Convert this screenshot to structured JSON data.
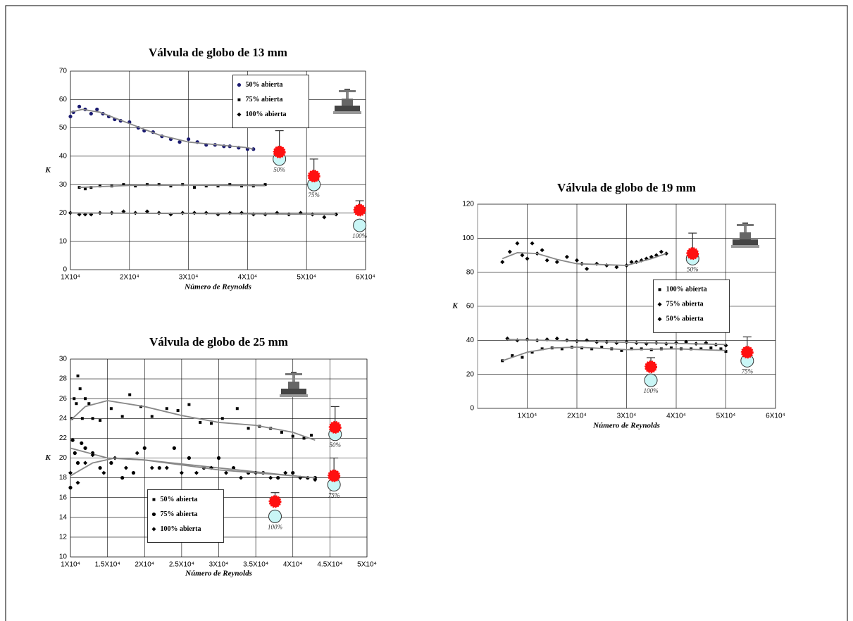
{
  "chart_data": [
    {
      "type": "scatter",
      "title": "Válvula de globo de 13 mm",
      "x_label": "Número de Reynolds",
      "y_label": "K",
      "xlim": [
        10000,
        60000
      ],
      "ylim": [
        0,
        70
      ],
      "xticks": [
        {
          "value": 10000,
          "label": "1X10⁴"
        },
        {
          "value": 20000,
          "label": "2X10⁴"
        },
        {
          "value": 30000,
          "label": "3X10⁴"
        },
        {
          "value": 40000,
          "label": "4X10⁴"
        },
        {
          "value": 50000,
          "label": "5X10⁴"
        },
        {
          "value": 60000,
          "label": "6X10⁴"
        }
      ],
      "yticks": [
        0,
        10,
        20,
        30,
        40,
        50,
        60,
        70
      ],
      "grid": true,
      "legend": "upper center",
      "series": [
        {
          "name": "50% abierta",
          "color": "#1a1a70",
          "marker": "circle",
          "x": [
            10000,
            10500,
            11500,
            12500,
            13500,
            14500,
            15500,
            16500,
            17500,
            18500,
            20000,
            21500,
            22500,
            24000,
            25500,
            27000,
            28500,
            30000,
            31500,
            33000,
            34500,
            36000,
            37000,
            38500,
            40000,
            41000
          ],
          "values": [
            54,
            55.5,
            57.5,
            56.5,
            55,
            56.5,
            55,
            54,
            53,
            52.5,
            52,
            50,
            49,
            48.5,
            47,
            46,
            45,
            46,
            45,
            44,
            44,
            43.5,
            43.5,
            43,
            42.5,
            42.5
          ],
          "trend_x": [
            10000,
            12000,
            15000,
            20000,
            25000,
            30000,
            35000,
            40000,
            41000
          ],
          "trend_y": [
            55.5,
            56.5,
            55.5,
            51.5,
            47.5,
            45,
            44,
            43,
            42.5
          ]
        },
        {
          "name": "75% abierta",
          "color": "#000000",
          "marker": "square",
          "x": [
            11500,
            12500,
            13500,
            15000,
            17000,
            19000,
            21000,
            23000,
            25000,
            27000,
            29000,
            31000,
            33000,
            35000,
            37000,
            39000,
            41000,
            43000
          ],
          "values": [
            29,
            28.5,
            29,
            29.5,
            29.5,
            30,
            29.5,
            30,
            30,
            29.5,
            30,
            29,
            29.5,
            29.5,
            30,
            29.5,
            29.5,
            30
          ],
          "trend_x": [
            11500,
            20000,
            30000,
            43000
          ],
          "trend_y": [
            29,
            29.7,
            29.8,
            29.6
          ]
        },
        {
          "name": "100% abierta",
          "color": "#000000",
          "marker": "diamond",
          "x": [
            10000,
            11500,
            12500,
            13500,
            15000,
            17000,
            19000,
            21000,
            23000,
            25000,
            27000,
            29000,
            31000,
            33000,
            35000,
            37000,
            39000,
            41000,
            43000,
            45000,
            47000,
            49000,
            51000,
            53000,
            55000
          ],
          "values": [
            20,
            19.5,
            19.5,
            19.5,
            20,
            20,
            20.5,
            20,
            20.5,
            20,
            19.5,
            20,
            20,
            20,
            19.5,
            20,
            20,
            19.5,
            19.5,
            20,
            19.5,
            20,
            19.5,
            18.5,
            19.5
          ],
          "trend_x": [
            10000,
            30000,
            55000
          ],
          "trend_y": [
            20,
            19.8,
            19.5
          ]
        }
      ],
      "annotations": [
        {
          "x": 45400,
          "y_measured": 41.5,
          "error": 7.5,
          "y_predicted": 39,
          "label": "50%"
        },
        {
          "x": 51250,
          "y_measured": 33,
          "error": 6,
          "y_predicted": 30,
          "label": "75%"
        },
        {
          "x": 59000,
          "y_measured": 21,
          "error": 3.3,
          "y_predicted": 15.6,
          "label": "100%"
        }
      ]
    },
    {
      "type": "scatter",
      "title": "Válvula de globo de 19 mm",
      "x_label": "Número de Reynolds",
      "y_label": "K",
      "xlim": [
        0,
        60000
      ],
      "ylim": [
        0,
        120
      ],
      "xticks": [
        {
          "value": 10000,
          "label": "1X10⁴"
        },
        {
          "value": 20000,
          "label": "2X10⁴"
        },
        {
          "value": 30000,
          "label": "3X10⁴"
        },
        {
          "value": 40000,
          "label": "4X10⁴"
        },
        {
          "value": 50000,
          "label": "5X10⁴"
        },
        {
          "value": 60000,
          "label": "6X10⁴"
        }
      ],
      "yticks": [
        0,
        20,
        40,
        60,
        80,
        100,
        120
      ],
      "grid": true,
      "legend": "center right",
      "series": [
        {
          "name": "100% abierta",
          "color": "#000000",
          "marker": "square",
          "x": [
            5000,
            7000,
            9000,
            11000,
            13000,
            15000,
            17000,
            19000,
            21000,
            23000,
            25000,
            27000,
            29000,
            31000,
            33000,
            35000,
            37000,
            39000,
            41000,
            43000,
            45000,
            47000,
            49000,
            50000
          ],
          "values": [
            28,
            31,
            30,
            33,
            35,
            35.5,
            35,
            36,
            35.5,
            35,
            36,
            35,
            34,
            35,
            35,
            34.5,
            35,
            35.5,
            35,
            35,
            35,
            35.5,
            35,
            33.5
          ],
          "trend_x": [
            5000,
            10000,
            15000,
            20000,
            30000,
            40000,
            50000
          ],
          "trend_y": [
            28,
            33,
            35.5,
            36,
            34.5,
            35,
            34
          ]
        },
        {
          "name": "75% abierta",
          "color": "#000000",
          "marker": "diamond",
          "x": [
            6000,
            8000,
            10000,
            12000,
            14000,
            16000,
            18000,
            20000,
            22000,
            24000,
            26000,
            28000,
            30000,
            32000,
            34000,
            36000,
            38000,
            40000,
            42000,
            44000,
            46000,
            48000,
            50000
          ],
          "values": [
            41,
            40,
            40.5,
            40,
            40.5,
            41,
            40,
            39.5,
            40,
            39,
            39,
            38.5,
            39,
            38.5,
            38,
            38.5,
            38,
            38.5,
            39,
            38,
            38.5,
            37.5,
            37
          ],
          "trend_x": [
            6000,
            20000,
            35000,
            50000
          ],
          "trend_y": [
            40.5,
            39.5,
            38.5,
            37.5
          ]
        },
        {
          "name": "50% abierta",
          "color": "#000000",
          "marker": "diamond",
          "x": [
            5000,
            6500,
            8000,
            9000,
            10000,
            11000,
            12000,
            13000,
            14000,
            16000,
            18000,
            20000,
            21000,
            22000,
            24000,
            26000,
            28000,
            30000,
            31000,
            32000,
            33000,
            34000,
            35000,
            36000,
            37000,
            38000
          ],
          "values": [
            86,
            92,
            97,
            90,
            88,
            97,
            91,
            93,
            87,
            86,
            89,
            87,
            85,
            82,
            85,
            84,
            83,
            84,
            86,
            86,
            87,
            88,
            89,
            90,
            92,
            91
          ],
          "trend_x": [
            5000,
            8000,
            12000,
            16000,
            20000,
            25000,
            30000,
            35000,
            38000
          ],
          "trend_y": [
            88,
            91.5,
            91,
            87.5,
            85,
            84.5,
            84,
            88,
            91
          ]
        }
      ],
      "annotations": [
        {
          "x": 43300,
          "y_measured": 91,
          "error": 12,
          "y_predicted": 88,
          "label": "50%"
        },
        {
          "x": 34900,
          "y_measured": 24.4,
          "error": 5.4,
          "y_predicted": 16.5,
          "label": "100%"
        },
        {
          "x": 54300,
          "y_measured": 33,
          "error": 9,
          "y_predicted": 28,
          "label": "75%"
        }
      ]
    },
    {
      "type": "scatter",
      "title": "Válvula de globo de 25 mm",
      "x_label": "Número de Reynolds",
      "y_label": "K",
      "xlim": [
        10000,
        50000
      ],
      "ylim": [
        10,
        30
      ],
      "xticks": [
        {
          "value": 10000,
          "label": "1X10⁴"
        },
        {
          "value": 15000,
          "label": "1.5X10⁴"
        },
        {
          "value": 20000,
          "label": "2X10⁴"
        },
        {
          "value": 25000,
          "label": "2.5X10⁴"
        },
        {
          "value": 30000,
          "label": "3X10⁴"
        },
        {
          "value": 35000,
          "label": "3.5X10⁴"
        },
        {
          "value": 40000,
          "label": "4X10⁴"
        },
        {
          "value": 45000,
          "label": "4.5X10⁴"
        },
        {
          "value": 50000,
          "label": "5X10⁴"
        }
      ],
      "yticks": [
        10,
        12,
        14,
        16,
        18,
        20,
        22,
        24,
        26,
        28,
        30
      ],
      "grid": true,
      "legend": "lower left",
      "series": [
        {
          "name": "50% abierta",
          "color": "#000000",
          "marker": "square",
          "x": [
            10200,
            10500,
            10800,
            11000,
            11300,
            11600,
            12000,
            12500,
            13000,
            14000,
            15500,
            17000,
            18000,
            19500,
            21000,
            23000,
            24500,
            26000,
            27500,
            29000,
            30500,
            32500,
            34000,
            35500,
            37000,
            38500,
            40000,
            41500,
            42500
          ],
          "values": [
            24,
            26,
            25.5,
            28.3,
            27,
            24,
            26,
            25.5,
            24,
            23.8,
            25,
            24.2,
            26.4,
            25.2,
            24.2,
            25,
            24.8,
            25.4,
            23.6,
            23.5,
            24,
            25,
            23,
            23.2,
            23,
            22.6,
            22.2,
            22,
            22.3
          ],
          "trend_x": [
            10000,
            12000,
            15000,
            20000,
            25000,
            30000,
            35000,
            40000,
            43000
          ],
          "trend_y": [
            23.8,
            25.2,
            25.8,
            25.2,
            24.3,
            23.6,
            23.3,
            22.6,
            21.8
          ]
        },
        {
          "name": "75% abierta",
          "color": "#000000",
          "marker": "circle",
          "x": [
            10000,
            10300,
            10600,
            11000,
            11500,
            12000,
            13000,
            14000,
            15500,
            17000,
            18500,
            20000,
            22000,
            24000,
            26000,
            28000,
            30000,
            32000,
            34000,
            36000,
            38000,
            40000,
            42000,
            43000
          ],
          "values": [
            17,
            21.8,
            20.5,
            19.5,
            21.5,
            21,
            20.5,
            19,
            19.5,
            18,
            18.5,
            21,
            19,
            21,
            20,
            19,
            20,
            19,
            18.5,
            18.5,
            18,
            18.5,
            18,
            18
          ],
          "trend_x": [
            10000,
            15000,
            20000,
            25000,
            30000,
            35000,
            40000,
            43000
          ],
          "trend_y": [
            21,
            20,
            19.8,
            19.4,
            19,
            18.6,
            18.2,
            18
          ]
        },
        {
          "name": "100% abierta",
          "color": "#000000",
          "marker": "diamond",
          "x": [
            10000,
            11000,
            12000,
            13000,
            14500,
            16000,
            17500,
            19000,
            21000,
            23000,
            25000,
            27000,
            29000,
            31000,
            33000,
            35000,
            37000,
            39000,
            41000,
            43000
          ],
          "values": [
            18.5,
            17.5,
            19.5,
            20.3,
            18.5,
            20,
            19,
            20.5,
            19,
            19,
            18.5,
            18.5,
            19,
            18.5,
            18,
            18.5,
            18,
            18.5,
            18,
            17.8
          ],
          "trend_x": [
            10000,
            13000,
            16000,
            20000,
            25000,
            30000,
            35000,
            40000,
            43000
          ],
          "trend_y": [
            18.2,
            19.5,
            20,
            19.8,
            19.3,
            18.8,
            18.5,
            18.2,
            18
          ]
        }
      ],
      "annotations": [
        {
          "x": 45700,
          "y_measured": 23.1,
          "error": 2.1,
          "y_predicted": 22.4,
          "label": "50%"
        },
        {
          "x": 45550,
          "y_measured": 18.2,
          "error": 1.8,
          "y_predicted": 17.3,
          "label": "75%"
        },
        {
          "x": 37600,
          "y_measured": 15.6,
          "error": 0.9,
          "y_predicted": 14.1,
          "label": "100%"
        }
      ]
    }
  ]
}
